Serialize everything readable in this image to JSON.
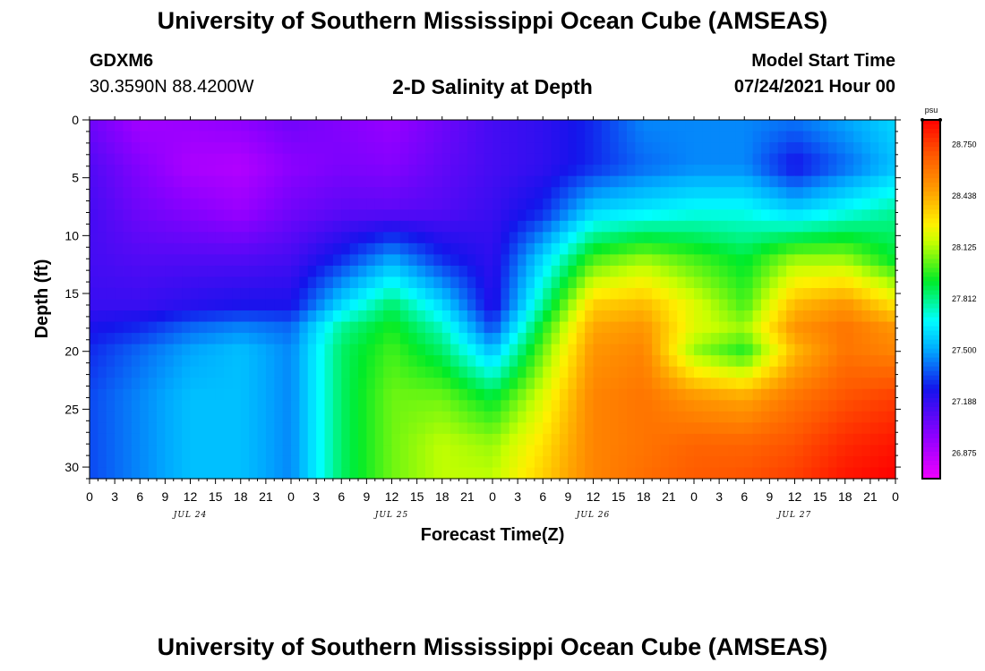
{
  "header": {
    "title_top": "University of Southern Mississippi Ocean Cube (AMSEAS)",
    "title_bottom": "University of Southern Mississippi Ocean Cube (AMSEAS)",
    "station": "GDXM6",
    "location": "30.3590N  88.4200W",
    "plot_title": "2-D Salinity at Depth",
    "model_start_label": "Model Start Time",
    "model_start_value": "07/24/2021 Hour 00"
  },
  "chart_data": {
    "type": "heatmap",
    "title": "2-D Salinity at Depth",
    "xlabel": "Forecast Time(Z)",
    "ylabel": "Depth (ft)",
    "x_hours": [
      0,
      96
    ],
    "y_range": [
      0,
      31
    ],
    "y_ticks": [
      0,
      5,
      10,
      15,
      20,
      25,
      30
    ],
    "x_tick_labels": [
      "0",
      "3",
      "6",
      "9",
      "12",
      "15",
      "18",
      "21",
      "0",
      "3",
      "6",
      "9",
      "12",
      "15",
      "18",
      "21",
      "0",
      "3",
      "6",
      "9",
      "12",
      "15",
      "18",
      "21",
      "0",
      "3",
      "6",
      "9",
      "12",
      "15",
      "18",
      "21",
      "0"
    ],
    "day_labels": [
      {
        "hour": 12,
        "label": "JUL 24"
      },
      {
        "hour": 36,
        "label": "JUL 25"
      },
      {
        "hour": 60,
        "label": "JUL 26"
      },
      {
        "hour": 84,
        "label": "JUL 27"
      }
    ],
    "colorbar": {
      "unit": "psu",
      "min": 26.72,
      "max": 28.9,
      "labels": [
        "28.750",
        "28.438",
        "28.125",
        "27.812",
        "27.500",
        "27.188",
        "26.875"
      ]
    },
    "hours": [
      0,
      6,
      12,
      18,
      24,
      30,
      36,
      42,
      48,
      54,
      60,
      66,
      72,
      78,
      84,
      90,
      96
    ],
    "depths": [
      0,
      4,
      8,
      12,
      16,
      18,
      20,
      24,
      28,
      31
    ],
    "values": [
      [
        27.05,
        26.92,
        26.95,
        26.98,
        27.05,
        27.0,
        26.95,
        27.05,
        27.15,
        27.2,
        27.3,
        27.45,
        27.45,
        27.45,
        27.42,
        27.5,
        27.6
      ],
      [
        27.12,
        27.0,
        26.9,
        26.88,
        26.98,
        27.02,
        27.0,
        27.08,
        27.15,
        27.2,
        27.3,
        27.4,
        27.45,
        27.45,
        27.25,
        27.4,
        27.55
      ],
      [
        27.15,
        27.05,
        27.0,
        26.95,
        27.05,
        27.1,
        27.1,
        27.12,
        27.18,
        27.3,
        27.6,
        27.65,
        27.7,
        27.7,
        27.6,
        27.7,
        27.8
      ],
      [
        27.15,
        27.12,
        27.12,
        27.12,
        27.15,
        27.3,
        27.5,
        27.3,
        27.2,
        27.6,
        28.0,
        28.1,
        28.0,
        27.9,
        28.1,
        28.1,
        27.9
      ],
      [
        27.18,
        27.18,
        27.22,
        27.25,
        27.25,
        27.6,
        27.85,
        27.6,
        27.22,
        27.8,
        28.35,
        28.4,
        28.2,
        28.0,
        28.4,
        28.5,
        28.3
      ],
      [
        27.25,
        27.3,
        27.4,
        27.45,
        27.4,
        27.8,
        27.95,
        27.75,
        27.35,
        27.95,
        28.45,
        28.5,
        28.2,
        28.1,
        28.5,
        28.6,
        28.5
      ],
      [
        27.3,
        27.4,
        27.5,
        27.55,
        27.45,
        27.85,
        28.0,
        27.85,
        27.55,
        28.05,
        28.5,
        28.55,
        28.1,
        27.95,
        28.4,
        28.6,
        28.55
      ],
      [
        27.35,
        27.45,
        27.55,
        27.55,
        27.45,
        27.85,
        28.05,
        28.05,
        27.9,
        28.2,
        28.55,
        28.6,
        28.5,
        28.45,
        28.6,
        28.7,
        28.75
      ],
      [
        27.35,
        27.45,
        27.55,
        27.55,
        27.45,
        27.85,
        28.05,
        28.15,
        28.1,
        28.3,
        28.55,
        28.6,
        28.65,
        28.65,
        28.7,
        28.8,
        28.85
      ],
      [
        27.35,
        27.45,
        27.55,
        27.55,
        27.45,
        27.85,
        28.05,
        28.15,
        28.15,
        28.35,
        28.55,
        28.62,
        28.68,
        28.7,
        28.75,
        28.85,
        28.9
      ]
    ]
  }
}
